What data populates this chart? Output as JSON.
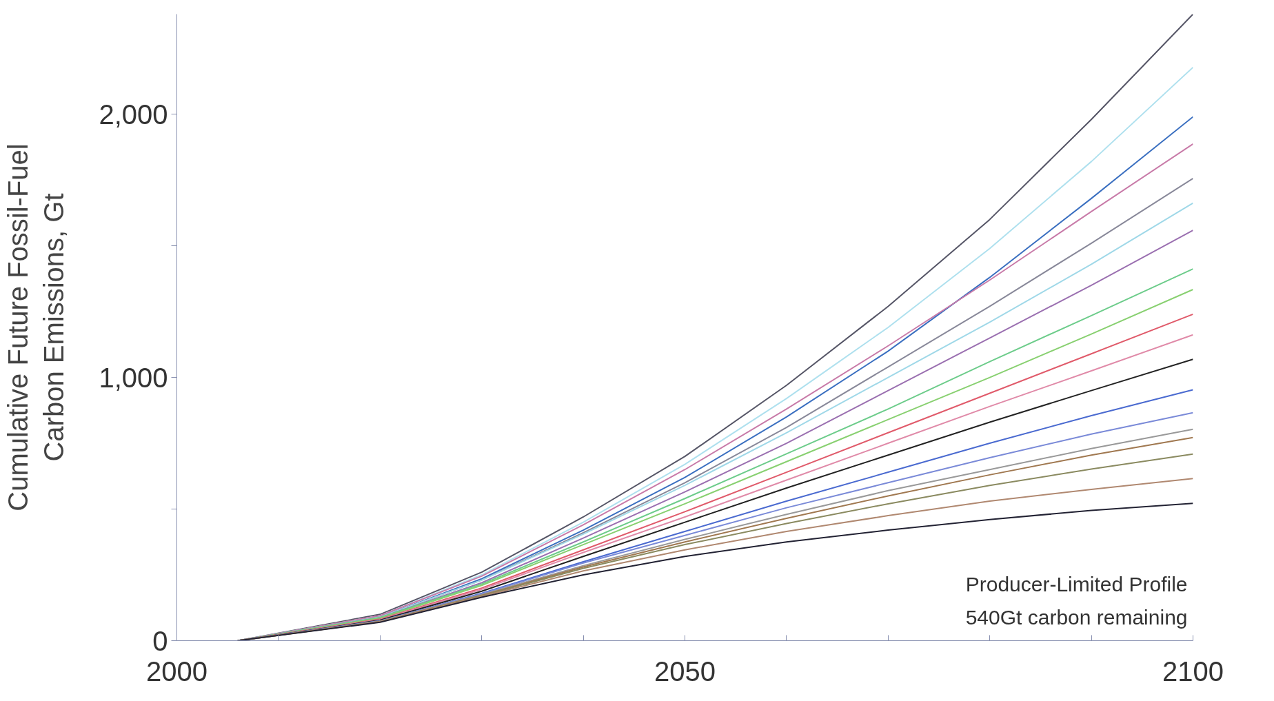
{
  "chart_data": {
    "type": "line",
    "ylabel": "Cumulative Future Fossil-Fuel\nCarbon Emissions, Gt",
    "x": [
      2006,
      2020,
      2030,
      2040,
      2050,
      2060,
      2070,
      2080,
      2090,
      2100
    ],
    "xlim": [
      2000,
      2100
    ],
    "xticks": [
      2000,
      {
        "value": 2010,
        "label": null
      },
      {
        "value": 2020,
        "label": null
      },
      {
        "value": 2030,
        "label": null
      },
      {
        "value": 2040,
        "label": null
      },
      2050,
      {
        "value": 2060,
        "label": null
      },
      {
        "value": 2070,
        "label": null
      },
      {
        "value": 2080,
        "label": null
      },
      {
        "value": 2090,
        "label": null
      },
      2100
    ],
    "ylim": [
      0,
      2380
    ],
    "yticks": [
      {
        "value": 0,
        "label": "0"
      },
      {
        "value": 500,
        "label": null
      },
      {
        "value": 1000,
        "label": "1,000"
      },
      {
        "value": 1500,
        "label": null
      },
      {
        "value": 2000,
        "label": "2,000"
      }
    ],
    "grid": false,
    "marker": "none",
    "line_style": "solid",
    "annotations": [
      "Producer-Limited Profile",
      "540Gt carbon remaining"
    ],
    "series": [
      {
        "color": "#555566",
        "values": [
          0,
          100,
          260,
          470,
          700,
          970,
          1270,
          1600,
          1980,
          2380
        ]
      },
      {
        "color": "#aee0ee",
        "values": [
          0,
          95,
          250,
          450,
          670,
          920,
          1190,
          1490,
          1820,
          2178
        ]
      },
      {
        "color": "#3a6fc0",
        "values": [
          0,
          90,
          235,
          420,
          620,
          850,
          1100,
          1380,
          1680,
          1990
        ]
      },
      {
        "color": "#c87aa8",
        "values": [
          0,
          95,
          245,
          440,
          650,
          880,
          1120,
          1370,
          1630,
          1887
        ]
      },
      {
        "color": "#888899",
        "values": [
          0,
          90,
          230,
          410,
          600,
          810,
          1040,
          1270,
          1510,
          1756
        ]
      },
      {
        "color": "#9fd8e8",
        "values": [
          0,
          90,
          230,
          405,
          590,
          790,
          1000,
          1210,
          1430,
          1662
        ]
      },
      {
        "color": "#9a6fb0",
        "values": [
          0,
          88,
          220,
          390,
          565,
          750,
          950,
          1150,
          1350,
          1559
        ]
      },
      {
        "color": "#6ccc8a",
        "values": [
          0,
          88,
          215,
          375,
          540,
          710,
          880,
          1060,
          1235,
          1412
        ]
      },
      {
        "color": "#88d070",
        "values": [
          0,
          85,
          210,
          365,
          520,
          680,
          840,
          1000,
          1165,
          1334
        ]
      },
      {
        "color": "#e05a6a",
        "values": [
          0,
          82,
          200,
          345,
          490,
          640,
          790,
          940,
          1090,
          1240
        ]
      },
      {
        "color": "#e08aa8",
        "values": [
          0,
          80,
          195,
          335,
          470,
          610,
          750,
          890,
          1025,
          1162
        ]
      },
      {
        "color": "#222222",
        "values": [
          0,
          78,
          188,
          320,
          450,
          580,
          705,
          830,
          950,
          1069
        ]
      },
      {
        "color": "#4a6ad0",
        "values": [
          0,
          75,
          180,
          300,
          415,
          530,
          640,
          750,
          855,
          953
        ]
      },
      {
        "color": "#7a8ad8",
        "values": [
          0,
          75,
          178,
          295,
          400,
          505,
          600,
          695,
          785,
          866
        ]
      },
      {
        "color": "#999999",
        "values": [
          0,
          74,
          175,
          285,
          385,
          480,
          570,
          650,
          730,
          803
        ]
      },
      {
        "color": "#a07850",
        "values": [
          0,
          73,
          172,
          280,
          375,
          465,
          550,
          630,
          705,
          772
        ]
      },
      {
        "color": "#8a8a60",
        "values": [
          0,
          72,
          170,
          275,
          365,
          445,
          520,
          590,
          652,
          709
        ]
      },
      {
        "color": "#b08870",
        "values": [
          0,
          72,
          168,
          265,
          345,
          415,
          475,
          530,
          575,
          616
        ]
      },
      {
        "color": "#222233",
        "values": [
          0,
          70,
          165,
          250,
          320,
          375,
          420,
          460,
          495,
          522
        ]
      }
    ]
  }
}
